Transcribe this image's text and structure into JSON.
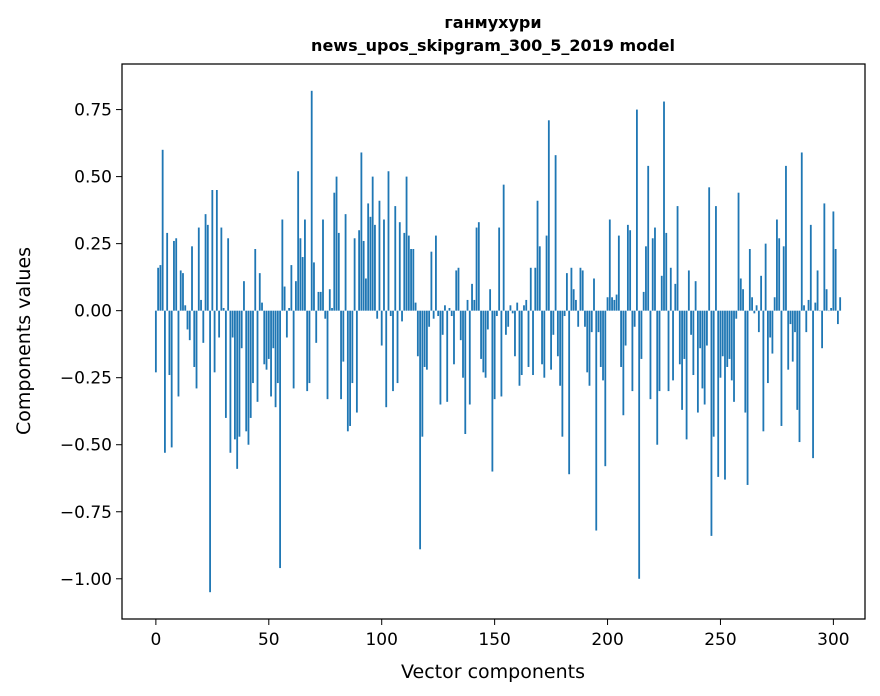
{
  "chart_data": {
    "type": "bar",
    "title": "ганмухури",
    "subtitle": "news_upos_skipgram_300_5_2019 model",
    "xlabel": "Vector components",
    "ylabel": "Components values",
    "xlim": [
      -15,
      314
    ],
    "ylim": [
      -1.15,
      0.92
    ],
    "xticks": [
      0,
      50,
      100,
      150,
      200,
      250,
      300
    ],
    "xtick_labels": [
      "0",
      "50",
      "100",
      "150",
      "200",
      "250",
      "300"
    ],
    "yticks": [
      0.75,
      0.5,
      0.25,
      0.0,
      -0.25,
      -0.5,
      -0.75,
      -1.0
    ],
    "ytick_labels": [
      "0.75",
      "0.50",
      "0.25",
      "0.00",
      "−0.25",
      "−0.50",
      "−0.75",
      "−1.00"
    ],
    "bar_color": "#1f77b4",
    "grid": false,
    "values": [
      -0.23,
      0.16,
      0.17,
      0.6,
      -0.53,
      0.29,
      -0.24,
      -0.51,
      0.26,
      0.27,
      -0.32,
      0.15,
      0.14,
      0.02,
      -0.07,
      -0.11,
      0.24,
      -0.21,
      -0.29,
      0.31,
      0.04,
      -0.12,
      0.36,
      0.32,
      -1.05,
      0.45,
      -0.23,
      0.45,
      -0.1,
      0.31,
      0.01,
      -0.4,
      0.27,
      -0.53,
      -0.1,
      -0.48,
      -0.59,
      -0.47,
      -0.14,
      0.11,
      -0.45,
      -0.5,
      -0.4,
      -0.27,
      0.23,
      -0.34,
      0.14,
      0.03,
      -0.2,
      -0.22,
      -0.18,
      -0.32,
      -0.14,
      -0.36,
      -0.27,
      -0.96,
      0.34,
      0.09,
      -0.1,
      0.01,
      0.17,
      -0.29,
      0.11,
      0.52,
      0.27,
      0.2,
      0.34,
      -0.3,
      -0.27,
      0.82,
      0.18,
      -0.12,
      0.07,
      0.07,
      0.34,
      -0.03,
      -0.33,
      0.08,
      0.01,
      0.44,
      0.5,
      0.29,
      -0.33,
      -0.19,
      0.36,
      -0.45,
      -0.43,
      -0.27,
      0.27,
      -0.38,
      0.3,
      0.59,
      0.26,
      0.12,
      0.4,
      0.35,
      0.5,
      0.32,
      -0.03,
      0.41,
      -0.13,
      0.34,
      -0.36,
      0.52,
      -0.02,
      -0.3,
      0.39,
      -0.27,
      0.33,
      -0.04,
      0.29,
      0.5,
      0.28,
      0.23,
      0.23,
      0.03,
      -0.17,
      -0.89,
      -0.47,
      -0.21,
      -0.22,
      -0.06,
      0.22,
      -0.03,
      0.28,
      -0.02,
      -0.35,
      -0.09,
      0.02,
      -0.34,
      0.01,
      -0.02,
      -0.2,
      0.15,
      0.16,
      -0.11,
      -0.25,
      -0.46,
      0.04,
      -0.35,
      0.1,
      0.04,
      0.31,
      0.33,
      -0.18,
      -0.23,
      -0.25,
      -0.07,
      0.08,
      -0.6,
      -0.33,
      -0.02,
      0.31,
      -0.32,
      0.47,
      -0.09,
      -0.06,
      0.02,
      -0.01,
      -0.17,
      0.03,
      -0.28,
      -0.24,
      0.02,
      0.04,
      -0.21,
      0.16,
      -0.24,
      0.16,
      0.41,
      0.24,
      -0.2,
      -0.25,
      0.28,
      0.71,
      -0.22,
      -0.09,
      0.58,
      -0.17,
      -0.28,
      -0.47,
      -0.02,
      0.14,
      -0.61,
      0.16,
      0.08,
      0.04,
      -0.06,
      0.16,
      0.15,
      -0.06,
      -0.23,
      -0.28,
      -0.08,
      0.12,
      -0.82,
      -0.08,
      -0.21,
      -0.26,
      -0.58,
      0.05,
      0.34,
      0.05,
      0.04,
      0.06,
      0.28,
      -0.21,
      -0.39,
      -0.13,
      0.32,
      0.3,
      -0.3,
      -0.06,
      0.75,
      -1.0,
      -0.18,
      0.07,
      0.24,
      0.54,
      -0.33,
      0.27,
      0.31,
      -0.5,
      -0.3,
      0.13,
      0.78,
      0.29,
      -0.3,
      0.16,
      -0.26,
      0.1,
      0.39,
      -0.2,
      -0.37,
      -0.18,
      -0.48,
      0.15,
      -0.09,
      -0.24,
      0.11,
      -0.38,
      -0.14,
      -0.29,
      -0.35,
      -0.13,
      0.46,
      -0.84,
      -0.47,
      0.39,
      -0.62,
      -0.25,
      -0.17,
      -0.63,
      -0.21,
      -0.18,
      -0.26,
      -0.34,
      -0.03,
      0.44,
      0.12,
      0.08,
      -0.38,
      -0.65,
      0.23,
      0.05,
      -0.01,
      0.02,
      -0.08,
      0.13,
      -0.45,
      0.25,
      -0.27,
      -0.1,
      -0.16,
      0.05,
      0.34,
      0.27,
      -0.43,
      0.24,
      0.54,
      -0.22,
      -0.05,
      -0.19,
      -0.08,
      -0.37,
      -0.49,
      0.59,
      0.02,
      -0.08,
      0.04,
      0.32,
      -0.55,
      0.03,
      0.15,
      0.0,
      -0.14,
      0.4,
      0.08,
      0.0,
      0.01,
      0.37,
      0.23,
      -0.05,
      0.05
    ]
  }
}
